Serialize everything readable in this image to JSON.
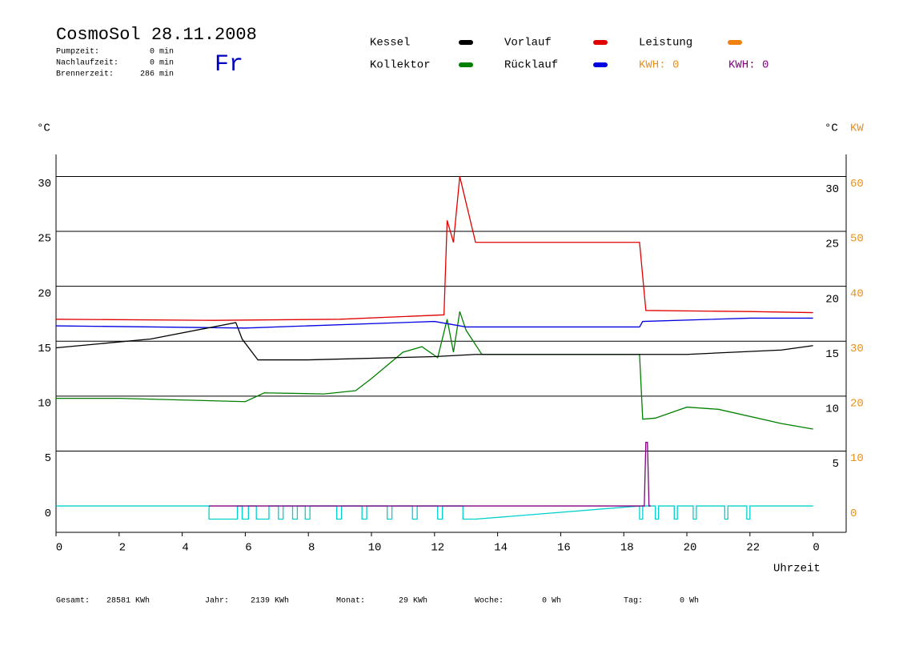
{
  "chart_data": {
    "type": "line",
    "title": "CosmoSol 28.11.2008",
    "day": "Fr",
    "stats": [
      {
        "label": "Pumpzeit:",
        "value": "0 min"
      },
      {
        "label": "Nachlaufzeit:",
        "value": "0 min"
      },
      {
        "label": "Brennerzeit:",
        "value": "286 min"
      }
    ],
    "kwh_labels": [
      {
        "label": "KWH: 0",
        "color": "#e8901c"
      },
      {
        "label": "KWH: 0",
        "color": "#800080"
      }
    ],
    "y_label": "°C",
    "y2_label_temp": "°C",
    "y2_label": "KW",
    "x_label": "Uhrzeit",
    "xlim": [
      0,
      25.05
    ],
    "xticks": [
      0,
      2,
      4,
      6,
      8,
      10,
      12,
      14,
      16,
      18,
      20,
      22,
      {
        "value": 24,
        "label": "0"
      }
    ],
    "ylim": [
      -2.4,
      32
    ],
    "yticks": [
      0,
      5,
      10,
      15,
      20,
      25,
      30
    ],
    "y2lim": [
      -4.8,
      64
    ],
    "y2ticks": [
      0,
      10,
      20,
      30,
      40,
      50,
      60
    ],
    "right_temp_ticks": [
      5,
      10,
      15,
      20,
      25,
      30
    ],
    "grid": true,
    "series": [
      {
        "name": "Kessel",
        "color": "#000000",
        "x": [
          0,
          3,
          5.7,
          5.9,
          6.4,
          8,
          12,
          13.3,
          18.5,
          20,
          23,
          24
        ],
        "values": [
          14.4,
          15.2,
          16.7,
          15.2,
          13.3,
          13.3,
          13.6,
          13.8,
          13.8,
          13.8,
          14.2,
          14.6
        ]
      },
      {
        "name": "Kollektor",
        "color": "#008000",
        "x": [
          0,
          2,
          6,
          6.6,
          8.5,
          9.5,
          10,
          11,
          11.6,
          12.1,
          12.4,
          12.6,
          12.8,
          13,
          13.5,
          18.5,
          18.6,
          19,
          20,
          21,
          23,
          24
        ],
        "values": [
          9.8,
          9.8,
          9.5,
          10.3,
          10.2,
          10.5,
          11.6,
          14,
          14.5,
          13.5,
          17,
          14,
          17.7,
          16,
          13.8,
          13.8,
          7.9,
          8,
          9,
          8.8,
          7.5,
          7
        ]
      },
      {
        "name": "Vorlauf",
        "color": "#e00000",
        "x": [
          0,
          5,
          9,
          12.3,
          12.4,
          12.6,
          12.8,
          13.3,
          18.5,
          18.7,
          22,
          24
        ],
        "values": [
          17,
          16.9,
          17,
          17.4,
          26,
          24,
          30,
          24,
          24,
          17.8,
          17.7,
          17.6
        ]
      },
      {
        "name": "Rücklauf",
        "color": "#0000e0",
        "x": [
          0,
          6,
          12,
          13,
          18.5,
          18.6,
          22,
          24
        ],
        "values": [
          16.4,
          16.2,
          16.8,
          16.3,
          16.3,
          16.8,
          17.1,
          17.1
        ]
      },
      {
        "name": "Leistung",
        "color": "#f08010",
        "x": [],
        "values": []
      },
      {
        "color": "#00d0d0",
        "x": [
          0,
          4.85,
          4.85,
          5.75,
          5.75,
          5.9,
          5.9,
          6.1,
          6.1,
          6.35,
          6.35,
          6.75,
          6.75,
          7.05,
          7.05,
          7.2,
          7.2,
          7.5,
          7.5,
          7.65,
          7.65,
          7.9,
          7.9,
          8.05,
          8.05,
          8.9,
          8.9,
          9.05,
          9.05,
          9.7,
          9.7,
          9.85,
          9.85,
          10.5,
          10.5,
          10.65,
          10.65,
          11.3,
          11.3,
          11.45,
          11.45,
          12.1,
          12.1,
          12.25,
          12.25,
          12.9,
          12.9,
          13.3,
          18.5,
          18.5,
          18.6,
          18.6,
          19.0,
          19.0,
          19.1,
          19.1,
          19.6,
          19.6,
          19.7,
          19.7,
          20.2,
          20.2,
          20.3,
          20.3,
          21.2,
          21.2,
          21.3,
          21.3,
          21.9,
          21.9,
          22.0,
          22.0,
          24
        ],
        "values": [
          0,
          0,
          -1.2,
          -1.2,
          0,
          0,
          -1.2,
          -1.2,
          0,
          0,
          -1.2,
          -1.2,
          0,
          0,
          -1.2,
          -1.2,
          0,
          0,
          -1.2,
          -1.2,
          0,
          0,
          -1.2,
          -1.2,
          0,
          0,
          -1.2,
          -1.2,
          0,
          0,
          -1.2,
          -1.2,
          0,
          0,
          -1.2,
          -1.2,
          0,
          0,
          -1.2,
          -1.2,
          0,
          0,
          -1.2,
          -1.2,
          0,
          0,
          -1.2,
          -1.2,
          0,
          -1.2,
          -1.2,
          0,
          0,
          -1.2,
          -1.2,
          0,
          0,
          -1.2,
          -1.2,
          0,
          0,
          -1.2,
          -1.2,
          0,
          0,
          -1.2,
          -1.2,
          0,
          0,
          -1.2,
          -1.2,
          0,
          0
        ]
      },
      {
        "color": "#800080",
        "x": [
          4.85,
          18.65,
          18.7,
          18.75,
          18.8,
          18.85
        ],
        "values": [
          0,
          0,
          5.8,
          5.8,
          0,
          0
        ]
      }
    ],
    "footer": [
      {
        "label": "Gesamt:",
        "value": "28581 KWh"
      },
      {
        "label": "Jahr:",
        "value": "2139 KWh"
      },
      {
        "label": "Monat:",
        "value": "29 KWh"
      },
      {
        "label": "Woche:",
        "value": "0 Wh"
      },
      {
        "label": "Tag:",
        "value": "0 Wh"
      }
    ]
  }
}
